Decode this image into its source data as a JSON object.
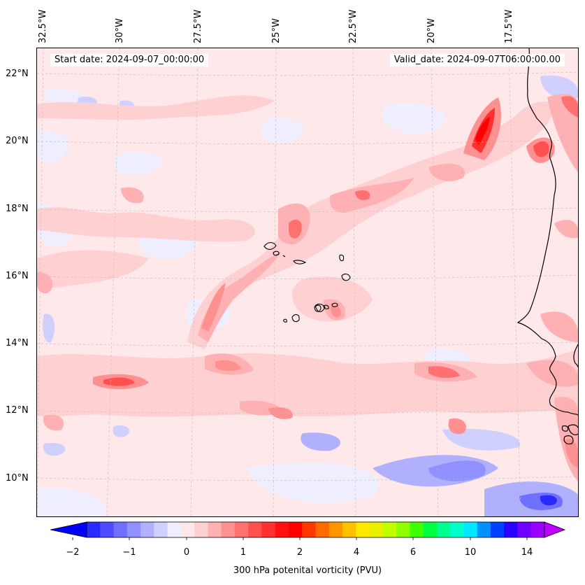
{
  "header": {
    "start_date": "Start date: 2024-09-07_00:00:00",
    "valid_date": "Valid_date: 2024-09-07T06:00:00.00"
  },
  "longitude_labels": [
    "32.5°W",
    "30°W",
    "27.5°W",
    "25°W",
    "22.5°W",
    "20°W",
    "17.5°W"
  ],
  "latitude_labels": [
    "22°N",
    "20°N",
    "18°N",
    "16°N",
    "14°N",
    "12°N",
    "10°N"
  ],
  "colorbar": {
    "label": "300 hPa potenital vorticity (PVU)",
    "tick_labels": [
      "−2",
      "−1",
      "0",
      "1",
      "2",
      "4",
      "6",
      "10",
      "14"
    ],
    "colors": [
      "#0000ff",
      "#2a2aff",
      "#4d4dff",
      "#7070ff",
      "#9090ff",
      "#b0b0ff",
      "#d0d0ff",
      "#eeeeff",
      "#ffe8ea",
      "#ffd0d2",
      "#ffb0b2",
      "#ff9090",
      "#ff7070",
      "#ff5050",
      "#ff3030",
      "#ff1010",
      "#ff0000",
      "#ff3800",
      "#ff6a00",
      "#ff9600",
      "#ffc000",
      "#ffe800",
      "#e8f000",
      "#c0ff00",
      "#90ff00",
      "#40ff00",
      "#00ff40",
      "#00ff90",
      "#00ffcc",
      "#00e8ff",
      "#0090ff",
      "#0040ff",
      "#2a00ff",
      "#7000ff",
      "#9a00ff",
      "#c000ff"
    ]
  },
  "colors": {
    "background_field": "#ffe8ea",
    "coastline": "#000000",
    "gridline": "#bbbbbb"
  }
}
